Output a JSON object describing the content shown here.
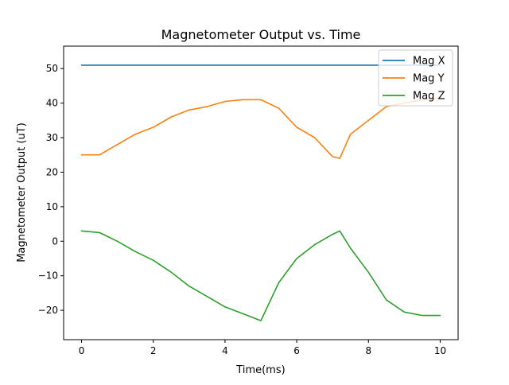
{
  "chart_data": {
    "type": "line",
    "title": "Magnetometer Output vs. Time",
    "xlabel": "Time(ms)",
    "ylabel": "Magnetometer Output (uT)",
    "xlim": [
      -0.5,
      10.5
    ],
    "ylim": [
      -28.5,
      56.5
    ],
    "xticks": [
      0,
      2,
      4,
      6,
      8,
      10
    ],
    "xtick_labels": [
      "0",
      "2",
      "4",
      "6",
      "8",
      "10"
    ],
    "yticks": [
      -20,
      -10,
      0,
      10,
      20,
      30,
      40,
      50
    ],
    "ytick_labels": [
      "−20",
      "−10",
      "0",
      "10",
      "20",
      "30",
      "40",
      "50"
    ],
    "grid": false,
    "legend_position": "top-right",
    "x": [
      0,
      0.5,
      1,
      1.5,
      2,
      2.5,
      3,
      3.5,
      4,
      4.5,
      5,
      5.5,
      6,
      6.5,
      7,
      7.2,
      7.5,
      8,
      8.5,
      9,
      9.5,
      10
    ],
    "series": [
      {
        "name": "Mag X",
        "color": "#1f77b4",
        "values": [
          51,
          51,
          51,
          51,
          51,
          51,
          51,
          51,
          51,
          51,
          51,
          51,
          51,
          51,
          51,
          51,
          51,
          51,
          51,
          51,
          51,
          51
        ]
      },
      {
        "name": "Mag Y",
        "color": "#ff7f0e",
        "values": [
          25,
          25,
          28,
          31,
          33,
          36,
          38,
          39,
          40.5,
          41,
          41,
          38.5,
          33,
          30,
          24.5,
          24,
          31,
          35,
          39,
          40,
          41,
          41.5
        ]
      },
      {
        "name": "Mag Z",
        "color": "#2ca02c",
        "values": [
          3,
          2.5,
          0,
          -3,
          -5.5,
          -9,
          -13,
          -16,
          -19,
          -21,
          -23,
          -12,
          -5,
          -1,
          2,
          3,
          -2,
          -9,
          -17,
          -20.5,
          -21.5,
          -21.5
        ]
      }
    ]
  }
}
